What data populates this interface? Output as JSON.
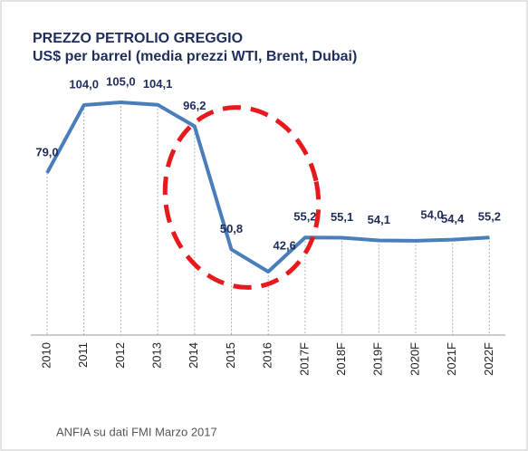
{
  "chart_data": {
    "type": "line",
    "title": "PREZZO PETROLIO GREGGIO",
    "subtitle": "US$ per barrel (media prezzi WTI, Brent, Dubai)",
    "categories": [
      "2010",
      "2011",
      "2012",
      "2013",
      "2014",
      "2015",
      "2016",
      "2017F",
      "2018F",
      "2019F",
      "2020F",
      "2021F",
      "2022F"
    ],
    "series": [
      {
        "name": "Prezzo petrolio",
        "color": "#4a7ebb",
        "values": [
          79.0,
          104.0,
          105.0,
          104.1,
          96.2,
          50.8,
          42.6,
          55.2,
          55.1,
          54.1,
          54.0,
          54.4,
          55.2
        ],
        "value_labels": [
          "79,0",
          "104,0",
          "105,0",
          "104,1",
          "96,2",
          "50,8",
          "42,6",
          "55,2",
          "55,1",
          "54,1",
          "54,0",
          "54,4",
          "55,2"
        ]
      }
    ],
    "source": "ANFIA su dati FMI Marzo 2017"
  }
}
